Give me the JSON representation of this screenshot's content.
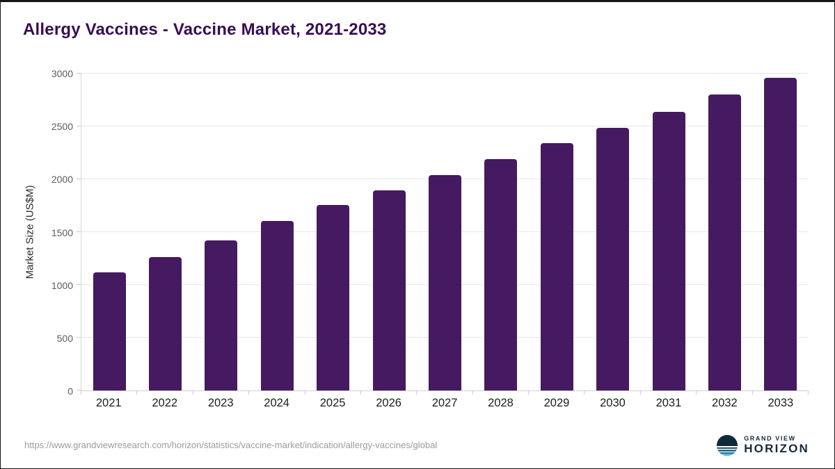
{
  "page": {
    "source_url": "https://www.grandviewresearch.com/horizon/statistics/vaccine-market/indication/allergy-vaccines/global",
    "logo": {
      "line1": "GRAND VIEW",
      "line2": "HORIZON"
    }
  },
  "chart_data": {
    "type": "bar",
    "title": "Allergy Vaccines - Vaccine Market, 2021-2033",
    "categories": [
      "2021",
      "2022",
      "2023",
      "2024",
      "2025",
      "2026",
      "2027",
      "2028",
      "2029",
      "2030",
      "2031",
      "2032",
      "2033"
    ],
    "values": [
      1120,
      1265,
      1420,
      1605,
      1755,
      1895,
      2040,
      2190,
      2340,
      2490,
      2640,
      2800,
      2960
    ],
    "xlabel": "",
    "ylabel": "Market Size (US$M)",
    "ylim": [
      0,
      3000
    ],
    "yticks": [
      0,
      500,
      1000,
      1500,
      2000,
      2500,
      3000
    ],
    "grid": true,
    "legend_position": "none",
    "bar_color": "#451a61",
    "title_color": "#380d52"
  }
}
